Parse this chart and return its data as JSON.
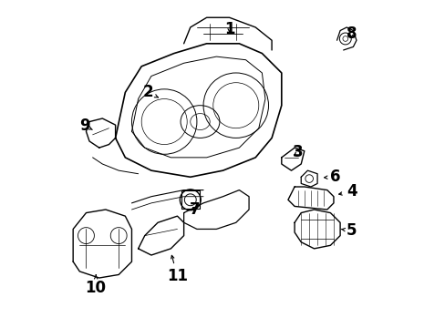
{
  "title": "",
  "background_color": "#ffffff",
  "fig_width": 4.89,
  "fig_height": 3.6,
  "dpi": 100,
  "font_size": 12,
  "font_weight": "bold",
  "text_color": "#000000",
  "line_color": "#000000",
  "line_width": 0.8
}
